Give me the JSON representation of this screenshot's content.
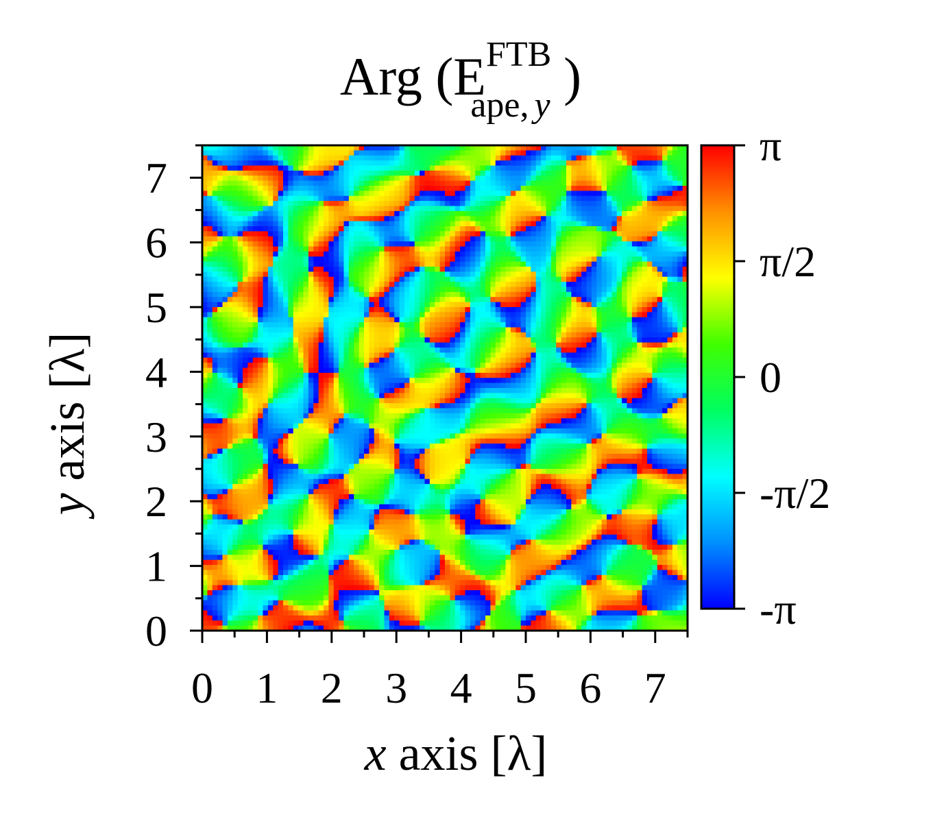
{
  "chart_data": {
    "type": "heatmap",
    "title": {
      "prefix": "Arg (E",
      "superscript": "FTB",
      "subscript_main": "ape,",
      "subscript_italic": "y",
      "suffix": " )"
    },
    "xlabel": {
      "italic": "x",
      "rest": " axis [λ]"
    },
    "ylabel": {
      "italic": "y",
      "rest": " axis [λ]"
    },
    "xlim": [
      0,
      7.5
    ],
    "ylim": [
      0,
      7.5
    ],
    "x_ticks": [
      0,
      1,
      2,
      3,
      4,
      5,
      6,
      7
    ],
    "x_tick_labels": [
      "0",
      "1",
      "2",
      "3",
      "4",
      "5",
      "6",
      "7"
    ],
    "y_ticks": [
      0,
      1,
      2,
      3,
      4,
      5,
      6,
      7
    ],
    "y_tick_labels": [
      "0",
      "1",
      "2",
      "3",
      "4",
      "5",
      "6",
      "7"
    ],
    "colorbar": {
      "min": -3.14159,
      "max": 3.14159,
      "ticks": [
        3.14159,
        1.5708,
        0,
        -1.5708,
        -3.14159
      ],
      "tick_labels": [
        "π",
        "π/2",
        "0",
        "-π/2",
        "-π"
      ],
      "colormap": [
        "#0000ff",
        "#0090ff",
        "#00ffff",
        "#00ff60",
        "#40ff00",
        "#ffff00",
        "#ff9000",
        "#ff0000"
      ]
    },
    "field_description_values": {
      "phase_extent": [
        -3.14159,
        3.14159
      ]
    }
  }
}
